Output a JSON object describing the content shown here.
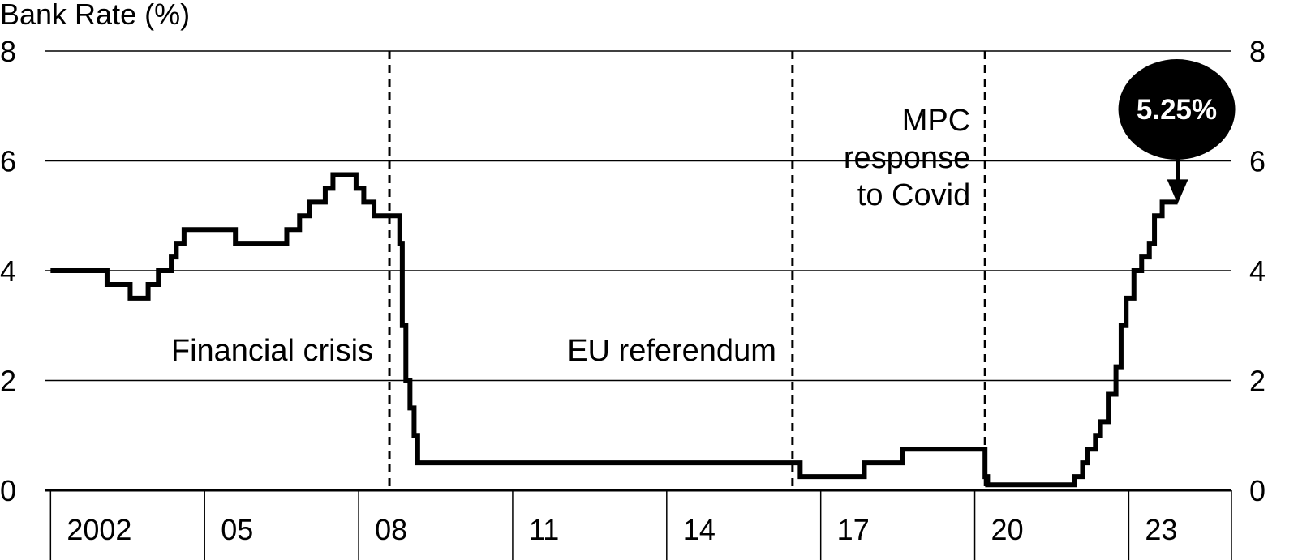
{
  "chart_data": {
    "type": "line",
    "ylabel": "Bank Rate (%)",
    "ylim": [
      0,
      8
    ],
    "yticks": [
      0,
      2,
      4,
      6,
      8
    ],
    "xlim": [
      2001.9,
      2025.0
    ],
    "xticks": [
      {
        "label": "2002",
        "value": 2002
      },
      {
        "label": "05",
        "value": 2005
      },
      {
        "label": "08",
        "value": 2008
      },
      {
        "label": "11",
        "value": 2011
      },
      {
        "label": "14",
        "value": 2014
      },
      {
        "label": "17",
        "value": 2017
      },
      {
        "label": "20",
        "value": 2020
      },
      {
        "label": "23",
        "value": 2023
      }
    ],
    "grid": true,
    "step": true,
    "series": [
      {
        "points": [
          [
            2002.0,
            4.0
          ],
          [
            2003.1,
            3.75
          ],
          [
            2003.55,
            3.5
          ],
          [
            2003.9,
            3.75
          ],
          [
            2004.1,
            4.0
          ],
          [
            2004.35,
            4.25
          ],
          [
            2004.45,
            4.5
          ],
          [
            2004.6,
            4.75
          ],
          [
            2005.6,
            4.5
          ],
          [
            2006.6,
            4.75
          ],
          [
            2006.85,
            5.0
          ],
          [
            2007.05,
            5.25
          ],
          [
            2007.35,
            5.5
          ],
          [
            2007.5,
            5.75
          ],
          [
            2007.95,
            5.5
          ],
          [
            2008.1,
            5.25
          ],
          [
            2008.3,
            5.0
          ],
          [
            2008.8,
            4.5
          ],
          [
            2008.85,
            3.0
          ],
          [
            2008.92,
            2.0
          ],
          [
            2009.0,
            1.5
          ],
          [
            2009.08,
            1.0
          ],
          [
            2009.15,
            0.5
          ],
          [
            2016.6,
            0.25
          ],
          [
            2017.85,
            0.5
          ],
          [
            2018.6,
            0.75
          ],
          [
            2020.2,
            0.25
          ],
          [
            2020.25,
            0.1
          ],
          [
            2021.95,
            0.25
          ],
          [
            2022.1,
            0.5
          ],
          [
            2022.2,
            0.75
          ],
          [
            2022.35,
            1.0
          ],
          [
            2022.45,
            1.25
          ],
          [
            2022.6,
            1.75
          ],
          [
            2022.75,
            2.25
          ],
          [
            2022.85,
            3.0
          ],
          [
            2022.95,
            3.5
          ],
          [
            2023.1,
            4.0
          ],
          [
            2023.25,
            4.25
          ],
          [
            2023.4,
            4.5
          ],
          [
            2023.5,
            5.0
          ],
          [
            2023.65,
            5.25
          ],
          [
            2023.95,
            5.25
          ]
        ]
      }
    ],
    "events": [
      {
        "x": 2008.6,
        "label": "Financial crisis"
      },
      {
        "x": 2016.45,
        "label": "EU referendum"
      },
      {
        "x": 2020.2,
        "label_lines": [
          "MPC",
          "response",
          "to Covid"
        ]
      }
    ],
    "callout": {
      "text": "5.25%",
      "x": 2023.95,
      "y": 5.25
    }
  }
}
